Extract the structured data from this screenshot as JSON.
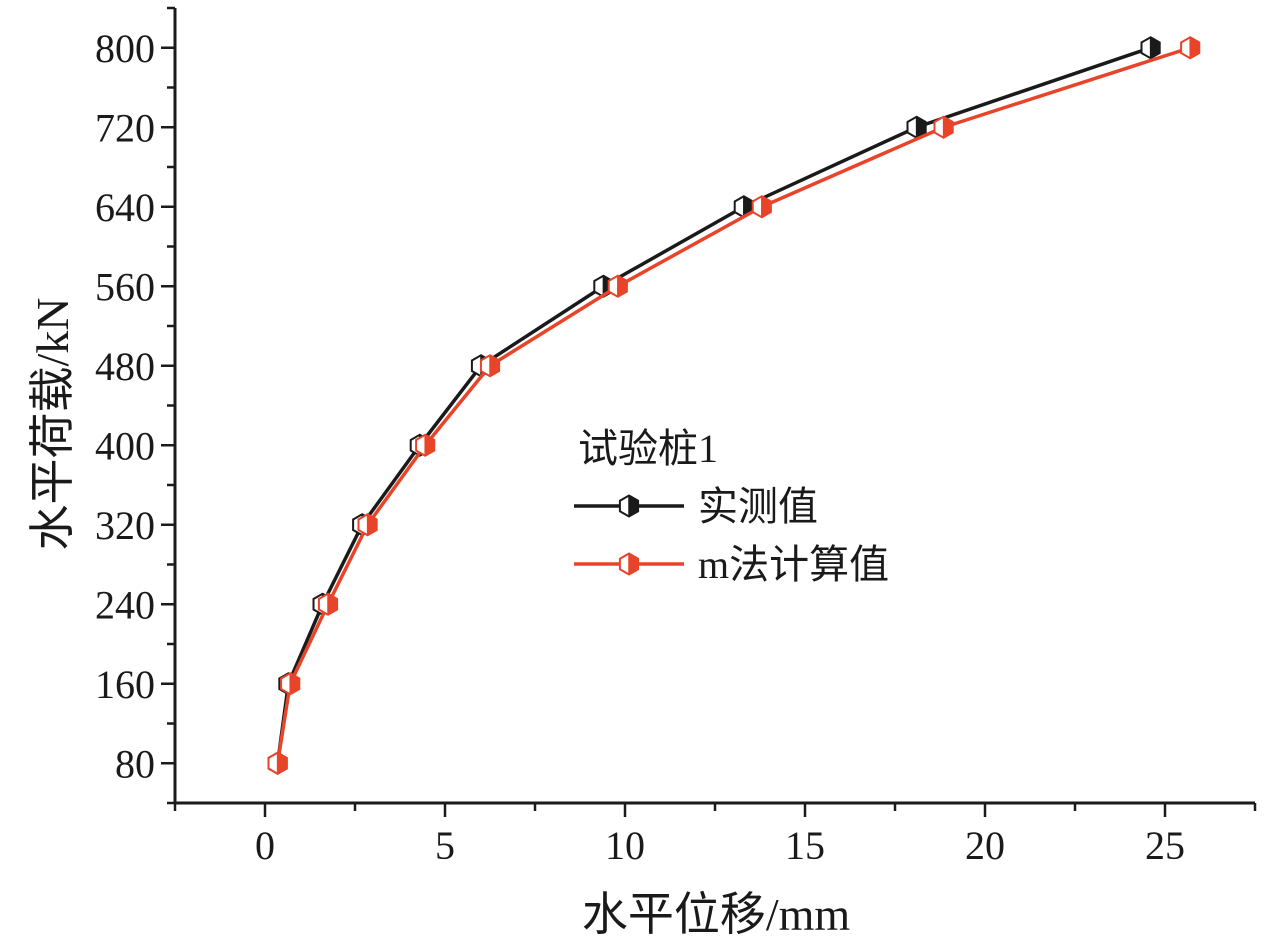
{
  "chart_data": {
    "type": "line",
    "xlabel": "水平位移/mm",
    "ylabel": "水平荷载/kN",
    "xlim": [
      -2.5,
      27.5
    ],
    "ylim": [
      40,
      840
    ],
    "x_ticks": [
      0,
      5,
      10,
      15,
      20,
      25
    ],
    "y_ticks": [
      80,
      160,
      240,
      320,
      400,
      480,
      560,
      640,
      720,
      800
    ],
    "grid": false,
    "legend_title": "试验桩1",
    "legend_position": "center-right",
    "series": [
      {
        "name": "实测值",
        "color": "#1a1a1a",
        "marker": "half-filled-hexagon",
        "x": [
          0.35,
          0.65,
          1.6,
          2.7,
          4.3,
          6.0,
          9.4,
          13.3,
          18.1,
          24.6
        ],
        "y": [
          80,
          160,
          240,
          320,
          400,
          480,
          560,
          640,
          720,
          800
        ]
      },
      {
        "name": "m法计算值",
        "color": "#e8442a",
        "marker": "half-filled-hexagon",
        "x": [
          0.35,
          0.7,
          1.75,
          2.85,
          4.45,
          6.25,
          9.8,
          13.8,
          18.85,
          25.7
        ],
        "y": [
          80,
          160,
          240,
          320,
          400,
          480,
          560,
          640,
          720,
          800
        ]
      }
    ]
  }
}
